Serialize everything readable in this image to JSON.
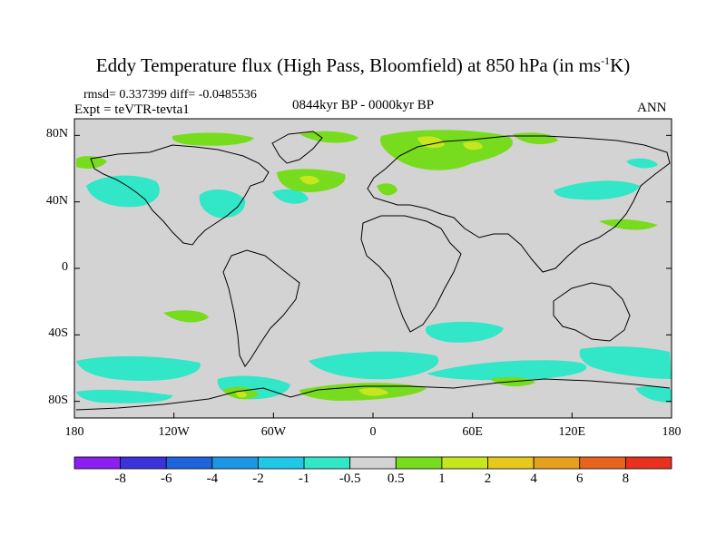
{
  "title": {
    "main": "Eddy Temperature flux (High Pass, Bloomfield) at 850 hPa (in ms",
    "sup": "-1",
    "tail": "K)"
  },
  "stats": "rmsd= 0.337399  diff= -0.0485536",
  "experiment": "Expt = teVTR-tevta1",
  "period": "0844kyr BP - 0000kyr BP",
  "season": "ANN",
  "map": {
    "lon_range": [
      -180,
      180
    ],
    "lat_range": [
      -90,
      90
    ],
    "lat_ticks": [
      {
        "value": 80,
        "label": "80N"
      },
      {
        "value": 40,
        "label": "40N"
      },
      {
        "value": 0,
        "label": "0"
      },
      {
        "value": -40,
        "label": "40S"
      },
      {
        "value": -80,
        "label": "80S"
      }
    ],
    "lon_ticks": [
      {
        "value": -180,
        "label": "180"
      },
      {
        "value": -120,
        "label": "120W"
      },
      {
        "value": -60,
        "label": "60W"
      },
      {
        "value": 0,
        "label": "0"
      },
      {
        "value": 60,
        "label": "60E"
      },
      {
        "value": 120,
        "label": "120E"
      },
      {
        "value": 180,
        "label": "180"
      }
    ],
    "background_color": "#d3d3d3"
  },
  "colorbar": {
    "colors": [
      "#8c1ef0",
      "#3c32dc",
      "#1e64dc",
      "#1e96e6",
      "#1ec8e6",
      "#32e6c8",
      "#d3d3d3",
      "#78dc1e",
      "#c8e61e",
      "#e6c81e",
      "#e6a01e",
      "#e6641e",
      "#e6321e"
    ],
    "labels": [
      "-8",
      "-6",
      "-4",
      "-2",
      "-1",
      "-0.5",
      "0.5",
      "1",
      "2",
      "4",
      "6",
      "8"
    ]
  }
}
